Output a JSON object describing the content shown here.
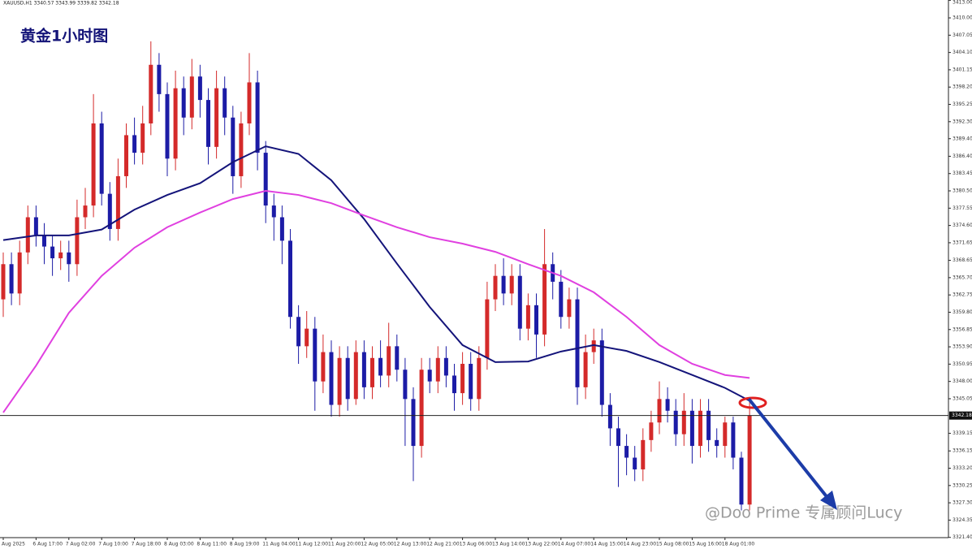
{
  "chart_data": {
    "type": "candlestick",
    "title": "黄金1小时图",
    "symbol_info": "XAUUSD,H1  3340.57 3343.99 3339.82 3342.18",
    "watermark": "@Doo Prime 专属顾问Lucy",
    "categories": [
      "Aug 2025",
      null,
      null,
      null,
      "6 Aug 17:00",
      null,
      null,
      null,
      "7 Aug 02:00",
      null,
      null,
      null,
      "7 Aug 10:00",
      null,
      null,
      null,
      "7 Aug 18:00",
      null,
      null,
      null,
      "8 Aug 03:00",
      null,
      null,
      null,
      "8 Aug 11:00",
      null,
      null,
      null,
      "8 Aug 19:00",
      null,
      null,
      null,
      "11 Aug 04:00",
      null,
      null,
      null,
      "11 Aug 12:00",
      null,
      null,
      null,
      "11 Aug 20:00",
      null,
      null,
      null,
      "12 Aug 05:00",
      null,
      null,
      null,
      "12 Aug 13:00",
      null,
      null,
      null,
      "12 Aug 21:00",
      null,
      null,
      null,
      "13 Aug 06:00",
      null,
      null,
      null,
      "13 Aug 14:00",
      null,
      null,
      null,
      "13 Aug 22:00",
      null,
      null,
      null,
      "14 Aug 07:00",
      null,
      null,
      null,
      "14 Aug 15:00",
      null,
      null,
      null,
      "14 Aug 23:00",
      null,
      null,
      null,
      "15 Aug 08:00",
      null,
      null,
      null,
      "15 Aug 16:00",
      null,
      null,
      null,
      "18 Aug 01:00",
      null,
      null,
      null
    ],
    "open": [
      3362,
      3368,
      3363,
      3370,
      3376,
      3373,
      3371,
      3369,
      3370,
      3368,
      3376,
      3378,
      3392,
      3380,
      3374,
      3383,
      3390,
      3387,
      3392,
      3402,
      3397,
      3386,
      3398,
      3393,
      3400,
      3396,
      3388,
      3398,
      3393,
      3383,
      3392,
      3399,
      3387,
      3378,
      3376,
      3372,
      3359,
      3354,
      3357,
      3348,
      3353,
      3344,
      3352,
      3345,
      3353,
      3347,
      3352,
      3349,
      3354,
      3350,
      3345,
      3337,
      3350,
      3348,
      3352,
      3349,
      3346,
      3351,
      3345,
      3352,
      3362,
      3366,
      3363,
      3366,
      3357,
      3361,
      3356,
      3368,
      3365,
      3359,
      3362,
      3347,
      3353,
      3355,
      3344,
      3340,
      3337,
      3335,
      3333,
      3338,
      3341,
      3345,
      3343,
      3339,
      3343,
      3337,
      3343,
      3338,
      3337,
      3341,
      3335,
      3327
    ],
    "high": [
      3370,
      3370,
      3372,
      3378,
      3378,
      3375,
      3373,
      3372,
      3372,
      3379,
      3381,
      3397,
      3394,
      3382,
      3386,
      3392,
      3393,
      3395,
      3406,
      3404,
      3399,
      3401,
      3400,
      3403,
      3402,
      3398,
      3401,
      3400,
      3395,
      3394,
      3404,
      3401,
      3389,
      3380,
      3378,
      3374,
      3361,
      3360,
      3359,
      3356,
      3355,
      3354,
      3354,
      3355,
      3355,
      3354,
      3355,
      3358,
      3356,
      3352,
      3347,
      3352,
      3352,
      3354,
      3354,
      3351,
      3353,
      3353,
      3354,
      3365,
      3368,
      3369,
      3368,
      3368,
      3363,
      3363,
      3374,
      3370,
      3367,
      3364,
      3364,
      3356,
      3357,
      3357,
      3346,
      3342,
      3339,
      3337,
      3340,
      3343,
      3348,
      3347,
      3345,
      3346,
      3345,
      3345,
      3345,
      3340,
      3342,
      3342,
      3336,
      3344.5
    ],
    "low": [
      3359,
      3361,
      3361,
      3368,
      3371,
      3368,
      3366,
      3367,
      3365,
      3366,
      3374,
      3376,
      3378,
      3372,
      3372,
      3381,
      3385,
      3385,
      3390,
      3394,
      3383,
      3384,
      3390,
      3391,
      3393,
      3385,
      3386,
      3390,
      3380,
      3381,
      3390,
      3384,
      3375,
      3372,
      3368,
      3357,
      3351,
      3352,
      3343,
      3346,
      3342,
      3342,
      3343,
      3344,
      3345,
      3345,
      3347,
      3347,
      3348,
      3337,
      3331,
      3335,
      3346,
      3346,
      3347,
      3343,
      3344,
      3343,
      3343,
      3350,
      3360,
      3361,
      3361,
      3355,
      3355,
      3352,
      3354,
      3362,
      3357,
      3357,
      3344,
      3345,
      3351,
      3342,
      3337,
      3330,
      3332,
      3331,
      3331,
      3336,
      3339,
      3341,
      3337,
      3337,
      3334,
      3335,
      3336,
      3335,
      3335,
      3333,
      3326,
      3326
    ],
    "close": [
      3368,
      3363,
      3370,
      3376,
      3373,
      3371,
      3369,
      3370,
      3368,
      3376,
      3378,
      3392,
      3380,
      3374,
      3383,
      3390,
      3387,
      3392,
      3402,
      3397,
      3386,
      3398,
      3393,
      3400,
      3396,
      3388,
      3398,
      3393,
      3383,
      3392,
      3399,
      3387,
      3378,
      3376,
      3372,
      3359,
      3354,
      3357,
      3348,
      3353,
      3344,
      3352,
      3345,
      3353,
      3347,
      3352,
      3349,
      3354,
      3350,
      3345,
      3337,
      3350,
      3348,
      3352,
      3349,
      3346,
      3351,
      3345,
      3352,
      3362,
      3366,
      3363,
      3366,
      3357,
      3361,
      3356,
      3368,
      3365,
      3359,
      3362,
      3347,
      3353,
      3355,
      3344,
      3340,
      3337,
      3335,
      3333,
      3338,
      3341,
      3345,
      3343,
      3339,
      3343,
      3337,
      3343,
      3338,
      3337,
      3341,
      3335,
      3327,
      3342.18
    ],
    "up_color": "#d42a2a",
    "down_color": "#1c1ca6",
    "moving_averages": [
      {
        "color": "#14147a",
        "x": [
          0,
          4,
          8,
          12,
          16,
          20,
          24,
          28,
          32,
          36,
          40,
          44,
          48,
          52,
          56,
          60,
          64,
          68,
          72,
          76,
          80,
          84,
          88,
          91
        ],
        "values": [
          3372.1,
          3372.9,
          3372.9,
          3373.9,
          3377.3,
          3379.8,
          3381.8,
          3385.4,
          3388.1,
          3386.8,
          3382.3,
          3375.7,
          3368.1,
          3360.7,
          3354.2,
          3351.3,
          3351.4,
          3353.1,
          3354.2,
          3353.2,
          3351.3,
          3349.1,
          3346.9,
          3344.7
        ]
      },
      {
        "color": "#e040e0",
        "x": [
          0,
          4,
          8,
          12,
          16,
          20,
          24,
          28,
          32,
          36,
          40,
          44,
          48,
          52,
          56,
          60,
          64,
          68,
          72,
          76,
          80,
          84,
          88,
          91
        ],
        "values": [
          3342.7,
          3350.7,
          3359.7,
          3366.0,
          3370.8,
          3374.3,
          3376.8,
          3379.1,
          3380.5,
          3379.8,
          3378.4,
          3376.3,
          3374.3,
          3372.6,
          3371.5,
          3370.1,
          3368.0,
          3366.0,
          3363.2,
          3359.0,
          3354.2,
          3351.0,
          3349.1,
          3348.6
        ]
      }
    ],
    "current_price": 3342.18,
    "ylim": [
      3321.36,
      3413.05
    ],
    "yticks": [
      {
        "value": 3413,
        "label": "3413.00"
      },
      {
        "value": 3410,
        "label": "3410.00"
      },
      3407.05,
      {
        "value": 3404.1,
        "label": "3404.10"
      },
      3401.15,
      {
        "value": 3398.2,
        "label": "3398.20"
      },
      3395.25,
      {
        "value": 3392.3,
        "label": "3392.30"
      },
      {
        "value": 3389.4,
        "label": "3389.40"
      },
      {
        "value": 3386.4,
        "label": "3386.40"
      },
      3383.45,
      {
        "value": 3380.5,
        "label": "3380.50"
      },
      3377.55,
      {
        "value": 3374.6,
        "label": "3374.60"
      },
      3371.65,
      3368.65,
      {
        "value": 3365.7,
        "label": "3365.70"
      },
      3362.75,
      {
        "value": 3359.8,
        "label": "3359.80"
      },
      3356.85,
      {
        "value": 3353.9,
        "label": "3353.90"
      },
      3350.95,
      {
        "value": 3348,
        "label": "3348.00"
      },
      3345.05,
      3339.15,
      3336.15,
      {
        "value": 3333.2,
        "label": "3333.20"
      },
      3330.25,
      {
        "value": 3327.3,
        "label": "3327.30"
      },
      3324.35,
      {
        "value": 3321.4,
        "label": "3321.40"
      }
    ]
  }
}
